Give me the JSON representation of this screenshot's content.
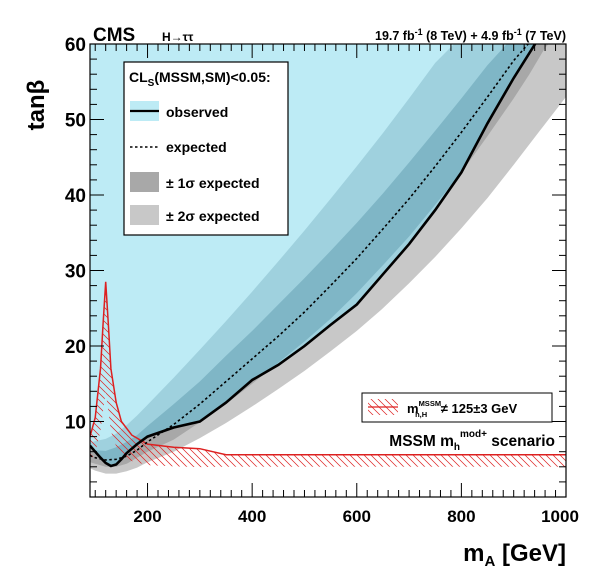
{
  "chart_data": {
    "type": "area",
    "experiment": "CMS",
    "process": "H→ττ",
    "lumi": {
      "a_value": "19.7 fb",
      "a_exp": "-1",
      "a_energy": " (8 TeV) + 4.9 fb",
      "b_exp": "-1",
      "b_energy": " (7 TeV)"
    },
    "xlabel": {
      "main": "m",
      "sub": "A",
      "rest": " [GeV]"
    },
    "ylabel": "tanβ",
    "xlim": [
      90,
      1000
    ],
    "ylim": [
      0,
      60
    ],
    "x_ticks": [
      200,
      400,
      600,
      800,
      1000
    ],
    "y_ticks": [
      10,
      20,
      30,
      40,
      50,
      60
    ],
    "legend": {
      "placement": "top-left",
      "header": {
        "main": "CL",
        "sub": "S",
        "rest": "(MSSM,SM)<0.05:"
      },
      "entries": [
        "observed",
        "expected",
        "± 1σ expected",
        "± 2σ expected"
      ]
    },
    "hatch_legend": {
      "placement": "bottom-right",
      "main": "m",
      "sup": "MSSM",
      "sub": "h,H",
      "rest": " ≠ 125±3 GeV"
    },
    "scenario": {
      "main": "MSSM m",
      "sub": "h",
      "sup": "mod+",
      "rest": " scenario"
    },
    "colors": {
      "observed_fill": "#bdebf5",
      "band_2sigma": "#9fd1de",
      "band_1sigma": "#7fb6c6",
      "gray_2sigma": "#c8c8c8",
      "gray_1sigma": "#a8a8a8",
      "hatch": "#dd2020"
    },
    "series": [
      {
        "name": "observed",
        "x": [
          90,
          100,
          110,
          120,
          130,
          140,
          150,
          160,
          180,
          200,
          250,
          300,
          350,
          400,
          450,
          500,
          550,
          600,
          650,
          700,
          750,
          800,
          850,
          900,
          950
        ],
        "y": [
          6.8,
          6.0,
          5.2,
          4.5,
          4.1,
          4.3,
          5.0,
          5.8,
          7.0,
          8.0,
          9.2,
          10.0,
          12.5,
          15.5,
          17.5,
          20.0,
          22.8,
          25.5,
          29.5,
          33.5,
          38.0,
          43.0,
          49.5,
          55.5,
          61.0
        ]
      },
      {
        "name": "expected",
        "x": [
          90,
          100,
          120,
          140,
          160,
          180,
          200,
          250,
          300,
          350,
          400,
          450,
          500,
          550,
          600,
          650,
          700,
          750,
          800,
          850,
          900,
          940
        ],
        "y": [
          5.5,
          5.2,
          4.9,
          5.0,
          5.4,
          6.2,
          7.3,
          9.6,
          12.3,
          15.3,
          18.3,
          21.3,
          24.5,
          28.0,
          31.6,
          35.5,
          39.5,
          43.8,
          48.3,
          53.0,
          57.8,
          61.0
        ]
      },
      {
        "name": "± 1σ expected",
        "x": [
          90,
          100,
          120,
          140,
          160,
          180,
          200,
          250,
          300,
          350,
          400,
          450,
          500,
          550,
          600,
          650,
          700,
          750,
          800,
          850,
          900,
          930,
          960,
          980
        ],
        "upper": [
          6.3,
          6.2,
          6.1,
          6.6,
          7.3,
          8.2,
          9.4,
          12.3,
          15.3,
          18.7,
          22.0,
          25.5,
          29.0,
          32.6,
          36.3,
          40.2,
          44.3,
          48.5,
          52.8,
          57.2,
          61.0,
          null,
          null,
          null
        ],
        "lower": [
          4.6,
          4.4,
          4.0,
          4.0,
          4.4,
          5.2,
          6.0,
          7.6,
          9.9,
          12.3,
          15.0,
          17.8,
          20.6,
          23.6,
          27.0,
          30.7,
          34.5,
          38.7,
          43.0,
          47.8,
          52.8,
          56.0,
          59.5,
          61.0
        ]
      },
      {
        "name": "± 2σ expected",
        "x": [
          90,
          100,
          120,
          140,
          160,
          180,
          200,
          250,
          300,
          350,
          400,
          450,
          500,
          550,
          600,
          650,
          700,
          750,
          800,
          850,
          900,
          950,
          1000
        ],
        "upper": [
          7.2,
          7.4,
          7.7,
          8.4,
          9.5,
          10.8,
          12.2,
          15.8,
          19.5,
          23.3,
          27.2,
          31.2,
          35.3,
          39.5,
          43.8,
          48.2,
          52.8,
          57.5,
          61.0,
          null,
          null,
          null,
          null
        ],
        "lower": [
          3.8,
          3.5,
          3.1,
          3.1,
          3.4,
          3.9,
          4.6,
          6.0,
          7.8,
          9.8,
          12.0,
          14.3,
          16.7,
          19.3,
          22.0,
          25.0,
          28.3,
          31.8,
          35.6,
          39.6,
          44.0,
          48.5,
          53.0
        ]
      },
      {
        "name": "m_h,H^MSSM ≠ 125±3 GeV",
        "x": [
          90,
          100,
          110,
          115,
          120,
          125,
          130,
          140,
          150,
          170,
          200,
          250,
          300,
          350,
          1000
        ],
        "y": [
          8.0,
          10.5,
          17.0,
          23.0,
          28.5,
          23.0,
          17.0,
          12.5,
          10.0,
          8.2,
          7.0,
          6.6,
          6.4,
          5.6,
          5.6
        ]
      }
    ]
  }
}
